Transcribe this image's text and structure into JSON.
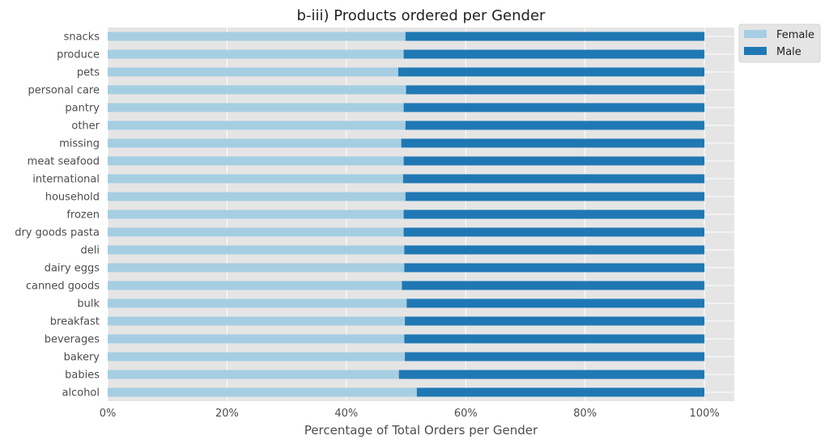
{
  "chart_data": {
    "type": "bar",
    "orientation": "horizontal",
    "stacked": true,
    "title": "b-iii) Products ordered per Gender",
    "xlabel": "Percentage of Total Orders per Gender",
    "ylabel": "",
    "xlim": [
      0,
      1.05
    ],
    "x_ticks": [
      0,
      0.2,
      0.4,
      0.6,
      0.8,
      1.0
    ],
    "x_tick_labels": [
      "0%",
      "20%",
      "40%",
      "60%",
      "80%",
      "100%"
    ],
    "grid": true,
    "legend_position": "outside-top-right",
    "categories": [
      "alcohol",
      "babies",
      "bakery",
      "beverages",
      "breakfast",
      "bulk",
      "canned goods",
      "dairy eggs",
      "deli",
      "dry goods pasta",
      "frozen",
      "household",
      "international",
      "meat seafood",
      "missing",
      "other",
      "pantry",
      "personal care",
      "pets",
      "produce",
      "snacks"
    ],
    "series": [
      {
        "name": "Female",
        "color": "#a6cee3",
        "values": [
          0.518,
          0.488,
          0.498,
          0.497,
          0.498,
          0.501,
          0.493,
          0.497,
          0.497,
          0.496,
          0.496,
          0.499,
          0.495,
          0.496,
          0.492,
          0.499,
          0.496,
          0.5,
          0.487,
          0.496,
          0.499
        ]
      },
      {
        "name": "Male",
        "color": "#1f78b4",
        "values": [
          0.482,
          0.512,
          0.502,
          0.503,
          0.502,
          0.499,
          0.507,
          0.503,
          0.503,
          0.504,
          0.504,
          0.501,
          0.505,
          0.504,
          0.508,
          0.501,
          0.504,
          0.5,
          0.513,
          0.504,
          0.501
        ]
      }
    ]
  }
}
